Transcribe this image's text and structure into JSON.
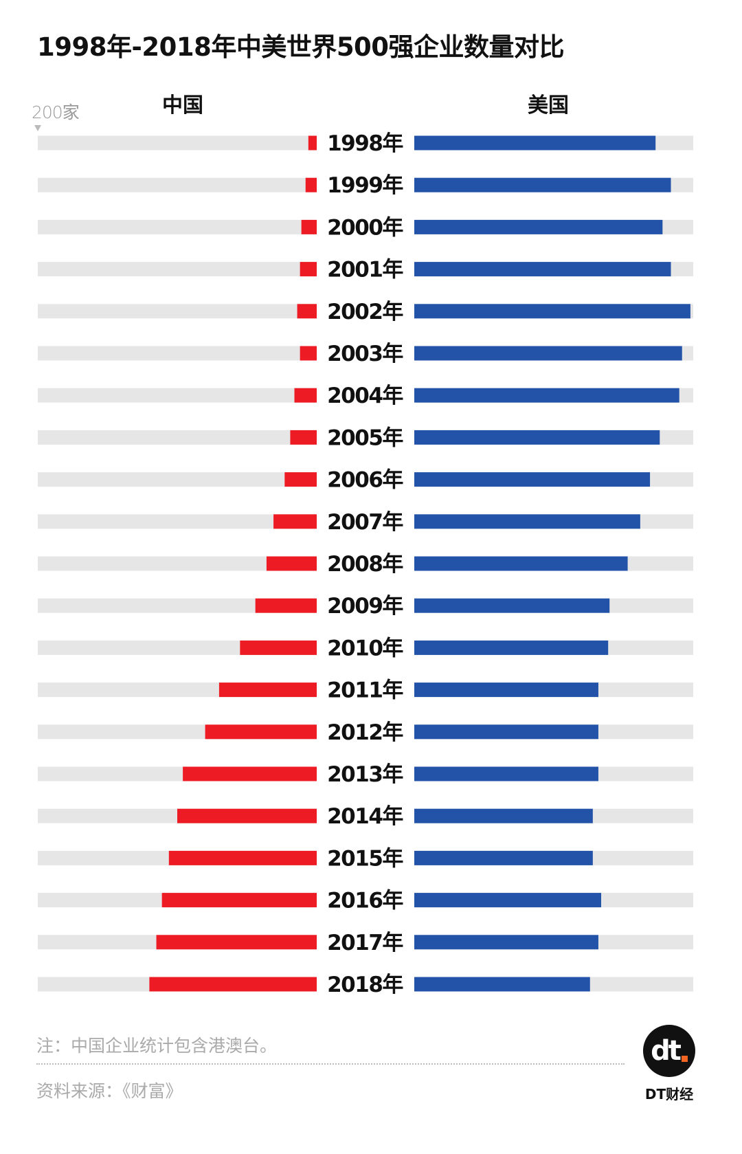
{
  "chart_data": {
    "type": "bar",
    "orientation": "horizontal-butterfly",
    "title": "1998年-2018年中美世界500强企业数量对比",
    "scale_label": "200家",
    "xlim": [
      0,
      200
    ],
    "grid": false,
    "categories": [
      "1998年",
      "1999年",
      "2000年",
      "2001年",
      "2002年",
      "2003年",
      "2004年",
      "2005年",
      "2006年",
      "2007年",
      "2008年",
      "2009年",
      "2010年",
      "2011年",
      "2012年",
      "2013年",
      "2014年",
      "2015年",
      "2016年",
      "2017年",
      "2018年"
    ],
    "series": [
      {
        "name": "中国",
        "color": "#ed1c24",
        "values": [
          6,
          8,
          11,
          12,
          14,
          12,
          16,
          19,
          23,
          31,
          36,
          44,
          55,
          70,
          80,
          96,
          100,
          106,
          111,
          115,
          120
        ]
      },
      {
        "name": "美国",
        "color": "#2353a8",
        "values": [
          173,
          184,
          178,
          184,
          198,
          192,
          190,
          176,
          169,
          162,
          153,
          140,
          139,
          132,
          132,
          132,
          128,
          128,
          134,
          132,
          126
        ]
      }
    ],
    "track_color": "#e6e6e6"
  },
  "footer": {
    "note": "注：中国企业统计包含港澳台。",
    "source": "资料来源：《财富》",
    "logo_text": "dt",
    "brand": "DT财经"
  }
}
